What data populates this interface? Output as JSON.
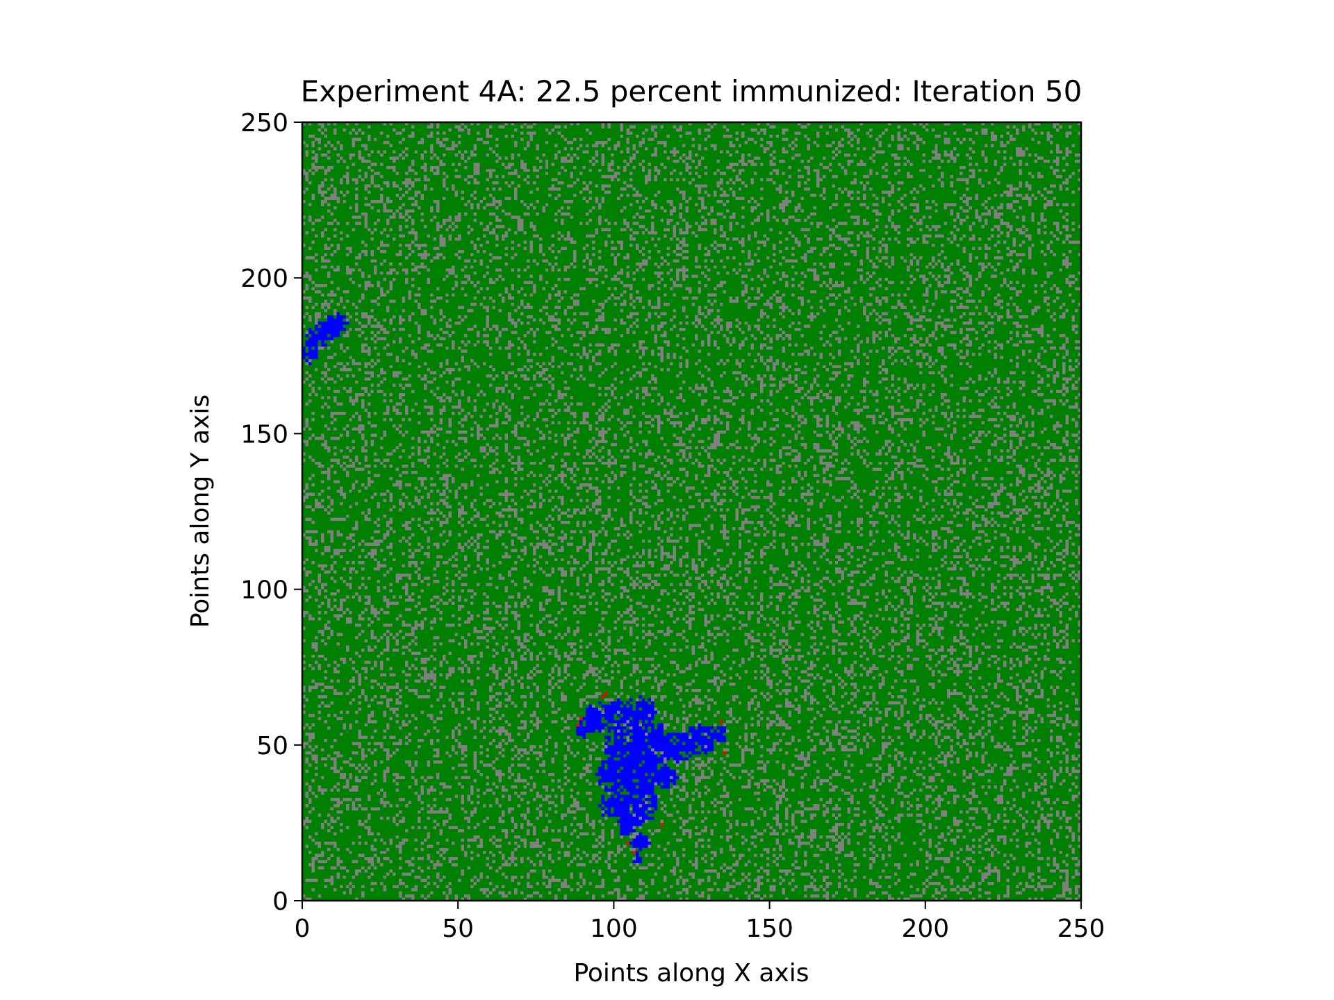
{
  "chart_data": {
    "type": "heatmap",
    "title": "Experiment 4A: 22.5 percent immunized: Iteration 50",
    "xlabel": "Points along X axis",
    "ylabel": "Points along Y axis",
    "xlim": [
      0,
      250
    ],
    "ylim": [
      0,
      250
    ],
    "xticks": [
      "0",
      "50",
      "100",
      "150",
      "200",
      "250"
    ],
    "yticks": [
      "0",
      "50",
      "100",
      "150",
      "200",
      "250"
    ],
    "grid_size": 250,
    "grid": false,
    "legend": "none",
    "state_colors": {
      "susceptible": "#008000",
      "immunized": "#808080",
      "recovered": "#0000ff",
      "infected": "#ff0000"
    },
    "immunized_fraction": 0.225,
    "clusters": [
      {
        "state": "recovered",
        "x_range": [
          0,
          14
        ],
        "y_range": [
          171,
          189
        ],
        "blobs": [
          [
            4,
            180,
            4
          ],
          [
            8,
            183,
            4
          ],
          [
            11,
            185,
            3
          ],
          [
            2,
            175,
            3
          ]
        ]
      },
      {
        "state": "recovered",
        "x_range": [
          86,
          136
        ],
        "y_range": [
          11,
          67
        ],
        "blobs": [
          [
            95,
            58,
            5
          ],
          [
            101,
            60,
            4
          ],
          [
            108,
            60,
            5
          ],
          [
            90,
            55,
            3
          ],
          [
            103,
            50,
            7
          ],
          [
            112,
            50,
            7
          ],
          [
            120,
            49,
            5
          ],
          [
            127,
            51,
            5
          ],
          [
            133,
            53,
            3
          ],
          [
            100,
            40,
            6
          ],
          [
            108,
            40,
            7
          ],
          [
            116,
            39,
            4
          ],
          [
            100,
            30,
            5
          ],
          [
            108,
            30,
            6
          ],
          [
            104,
            24,
            4
          ],
          [
            108,
            18,
            3
          ],
          [
            107,
            13,
            2
          ]
        ],
        "infected_edge": [
          [
            89,
            58
          ],
          [
            96,
            65
          ],
          [
            97,
            66
          ],
          [
            134,
            57
          ],
          [
            135,
            47
          ],
          [
            115,
            24
          ],
          [
            104,
            18
          ],
          [
            106,
            15
          ],
          [
            88,
            56
          ]
        ]
      }
    ]
  }
}
